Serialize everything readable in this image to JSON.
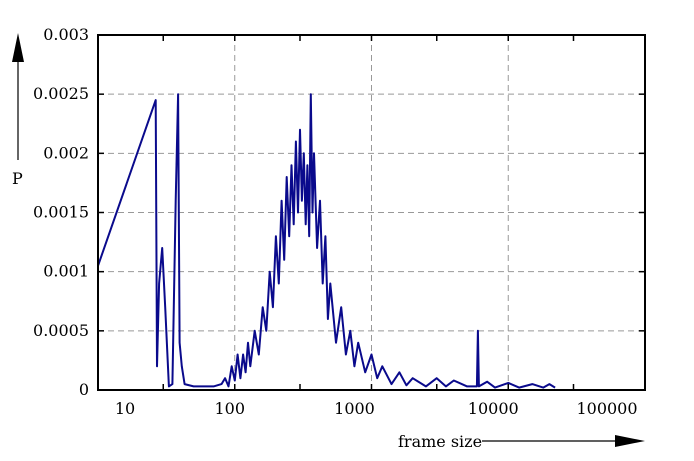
{
  "chart_data": {
    "type": "line",
    "title": "",
    "xlabel": "frame size",
    "ylabel": "P",
    "x_scale": "log",
    "xlim": [
      10,
      100000
    ],
    "ylim": [
      0,
      0.003
    ],
    "grid": true,
    "x_ticks": [
      10,
      100,
      1000,
      10000,
      100000
    ],
    "x_tick_labels": [
      "10",
      "100",
      "1000",
      "10000",
      "100000"
    ],
    "y_ticks": [
      0,
      0.0005,
      0.001,
      0.0015,
      0.002,
      0.0025,
      0.003
    ],
    "y_tick_labels": [
      "0",
      "0.0005",
      "0.001",
      "0.0015",
      "0.002",
      "0.0025",
      "0.003"
    ],
    "line_color": "#0a0a8c",
    "grid_color": "#999999",
    "series": [
      {
        "x": [
          10,
          26.4,
          27,
          28,
          29.5,
          31,
          33,
          35,
          37,
          38.5,
          39.5,
          41,
          43,
          50,
          60,
          70,
          80,
          85,
          90,
          95,
          100,
          105,
          110,
          115,
          120,
          125,
          130,
          140,
          150,
          160,
          170,
          180,
          190,
          200,
          210,
          220,
          230,
          240,
          250,
          260,
          270,
          280,
          290,
          300,
          310,
          320,
          330,
          340,
          350,
          360,
          370,
          380,
          400,
          420,
          440,
          460,
          480,
          500,
          550,
          600,
          650,
          700,
          750,
          800,
          900,
          1000,
          1100,
          1200,
          1400,
          1600,
          1800,
          2000,
          2500,
          3000,
          3500,
          4000,
          5000,
          5900,
          6000,
          6100,
          7000,
          8000,
          10000,
          12000,
          15000,
          18000,
          20000,
          22000
        ],
        "y": [
          0.00105,
          0.00245,
          0.0002,
          0.0009,
          0.0012,
          0.0007,
          3e-05,
          5e-05,
          0.0016,
          0.0025,
          0.0004,
          0.0002,
          5e-05,
          3e-05,
          3e-05,
          3e-05,
          5e-05,
          0.0001,
          3e-05,
          0.0002,
          8e-05,
          0.0003,
          0.0001,
          0.0003,
          0.00015,
          0.0004,
          0.0002,
          0.0005,
          0.0003,
          0.0007,
          0.0005,
          0.001,
          0.0007,
          0.0013,
          0.0009,
          0.0016,
          0.0011,
          0.0018,
          0.0013,
          0.0019,
          0.0014,
          0.0021,
          0.0015,
          0.0022,
          0.0016,
          0.002,
          0.0014,
          0.0019,
          0.0013,
          0.0025,
          0.0015,
          0.002,
          0.0012,
          0.0016,
          0.0009,
          0.0013,
          0.0006,
          0.0009,
          0.0004,
          0.0007,
          0.0003,
          0.0005,
          0.0002,
          0.0004,
          0.00015,
          0.0003,
          0.0001,
          0.0002,
          5e-05,
          0.00015,
          4e-05,
          0.0001,
          3e-05,
          0.0001,
          3e-05,
          8e-05,
          3e-05,
          3e-05,
          0.0005,
          3e-05,
          7e-05,
          2e-05,
          6e-05,
          2e-05,
          5e-05,
          2e-05,
          5e-05,
          2e-05
        ]
      }
    ]
  }
}
